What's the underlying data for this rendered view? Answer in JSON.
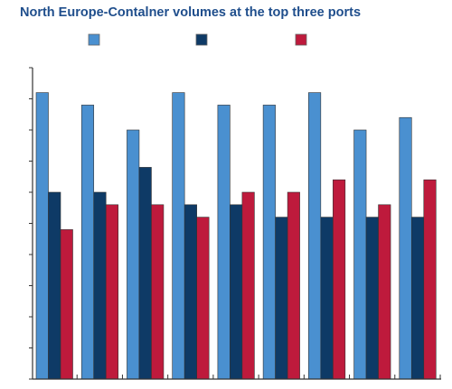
{
  "chart_data": {
    "type": "bar",
    "title": "North Europe-Contalner volumes at the top three ports",
    "xlabel": "",
    "ylabel": "",
    "categories": [
      "",
      "",
      "",
      "",
      "",
      "",
      "",
      "",
      ""
    ],
    "series": [
      {
        "values": [
          33,
          32,
          30,
          33,
          32,
          32,
          33,
          30,
          31
        ]
      },
      {
        "values": [
          25,
          25,
          27,
          24,
          24,
          23,
          23,
          23,
          23
        ]
      },
      {
        "values": [
          22,
          24,
          24,
          23,
          25,
          25,
          26,
          24,
          26
        ]
      }
    ],
    "ylim": [
      10,
      35
    ],
    "colors": [
      "#4a90d0",
      "#0e3a66",
      "#be1a3c"
    ],
    "legend": "top",
    "grid": false
  }
}
